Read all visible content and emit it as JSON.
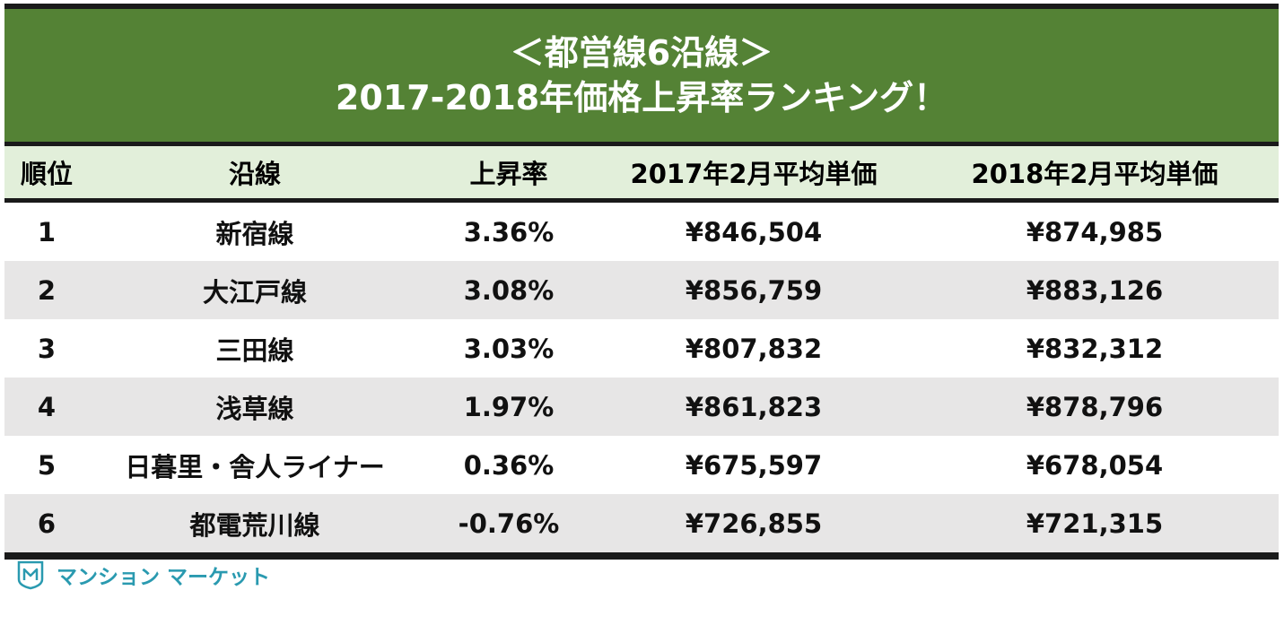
{
  "chart_data": {
    "type": "table",
    "title_line1": "＜都営線6沿線＞",
    "title_line2": "2017-2018年価格上昇率ランキング！",
    "columns": [
      "順位",
      "沿線",
      "上昇率",
      "2017年2月平均単価",
      "2018年2月平均単価"
    ],
    "rows": [
      [
        "1",
        "新宿線",
        "3.36%",
        "¥846,504",
        "¥874,985"
      ],
      [
        "2",
        "大江戸線",
        "3.08%",
        "¥856,759",
        "¥883,126"
      ],
      [
        "3",
        "三田線",
        "3.03%",
        "¥807,832",
        "¥832,312"
      ],
      [
        "4",
        "浅草線",
        "1.97%",
        "¥861,823",
        "¥878,796"
      ],
      [
        "5",
        "日暮里・舎人ライナー",
        "0.36%",
        "¥675,597",
        "¥678,054"
      ],
      [
        "6",
        "都電荒川線",
        "-0.76%",
        "¥726,855",
        "¥721,315"
      ]
    ]
  },
  "colors": {
    "header_bg": "#548235",
    "column_header_bg": "#e2efda",
    "alt_row_bg": "#e7e6e6",
    "border": "#1a1a1a",
    "brand": "#2a9ab0"
  },
  "brand": {
    "icon": "mansion-market-logo-icon",
    "name": "マンション マーケット"
  }
}
